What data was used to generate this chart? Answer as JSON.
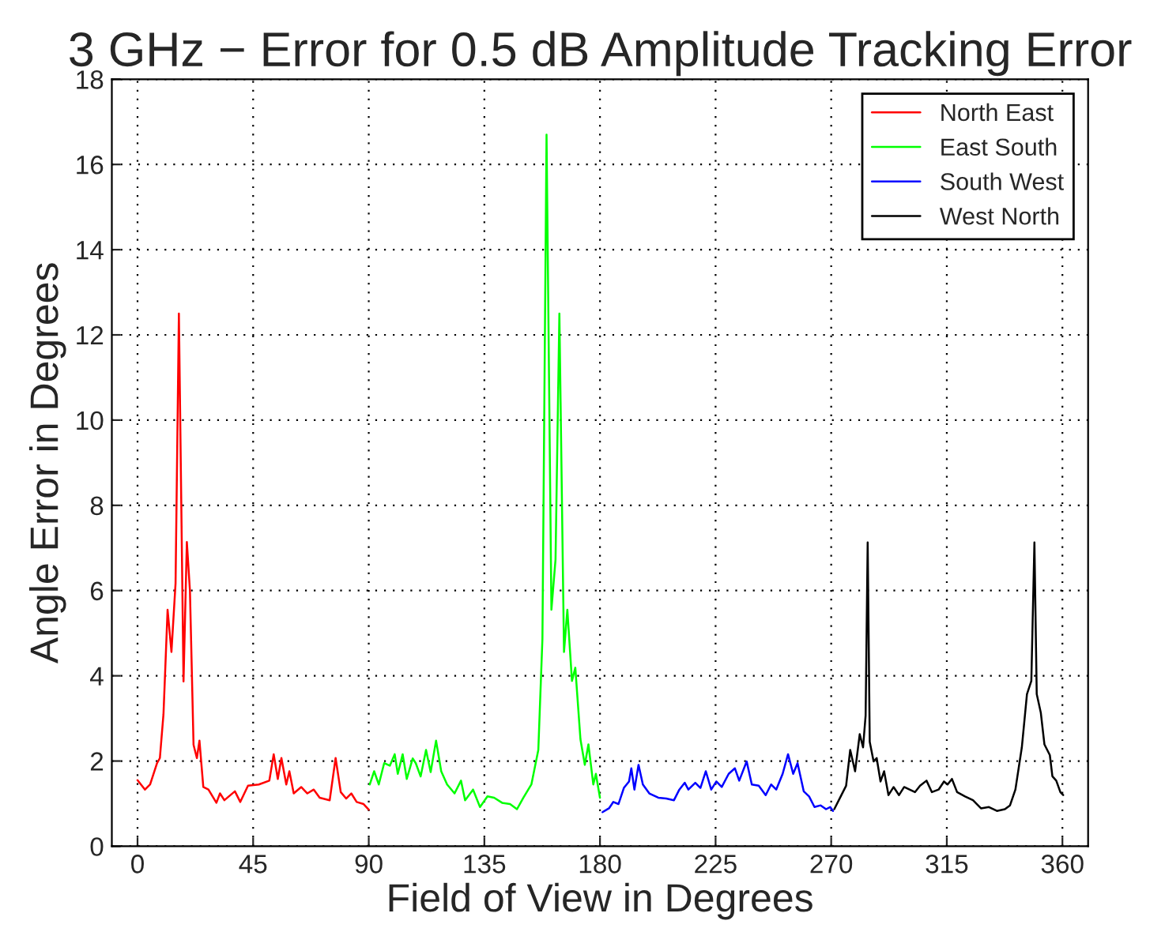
{
  "chart_data": {
    "type": "line",
    "title": "3 GHz − Error for 0.5 dB Amplitude Tracking Error",
    "xlabel": "Field of View in Degrees",
    "ylabel": "Angle Error in Degrees",
    "xlim": [
      -10,
      370
    ],
    "ylim": [
      0,
      18
    ],
    "xticks": [
      0,
      45,
      90,
      135,
      180,
      225,
      270,
      315,
      360
    ],
    "yticks": [
      0,
      2,
      4,
      6,
      8,
      10,
      12,
      14,
      16,
      18
    ],
    "grid": true,
    "legend": "top right",
    "line_style": "solid",
    "series": [
      {
        "name": "North East",
        "color": "#ff0000",
        "x": [
          0,
          2.9,
          4.9,
          7.6,
          8.7,
          10.1,
          11.7,
          13.2,
          14.8,
          16.1,
          17.9,
          19.2,
          20.4,
          21.8,
          23.1,
          24.1,
          25.6,
          27.6,
          30.7,
          32.1,
          33.8,
          37.9,
          40,
          43,
          47.2,
          51.3,
          53,
          54.6,
          56,
          57.9,
          59.1,
          60.8,
          63.7,
          66.1,
          68.6,
          70.9,
          74.8,
          77.1,
          79.1,
          81.2,
          83.2,
          85.3,
          88,
          90
        ],
        "values": [
          1.55,
          1.33,
          1.45,
          1.95,
          2.07,
          3.1,
          5.55,
          4.56,
          6.17,
          12.5,
          3.87,
          7.14,
          6.0,
          2.38,
          2.07,
          2.48,
          1.39,
          1.33,
          1.02,
          1.24,
          1.08,
          1.29,
          1.04,
          1.42,
          1.45,
          1.54,
          2.16,
          1.58,
          2.07,
          1.45,
          1.76,
          1.24,
          1.39,
          1.24,
          1.33,
          1.14,
          1.08,
          2.07,
          1.27,
          1.12,
          1.24,
          1.04,
          0.99,
          0.86
        ]
      },
      {
        "name": "East South",
        "color": "#00ff00",
        "x": [
          90.4,
          92.1,
          93.9,
          96,
          98.2,
          100.1,
          101.3,
          103.2,
          104.8,
          107.1,
          108.3,
          110.2,
          112.3,
          114.1,
          116.2,
          118.2,
          120.5,
          123.4,
          125.9,
          127.5,
          130.6,
          133.3,
          136.2,
          138.8,
          141.9,
          145,
          147.7,
          150.2,
          153.3,
          156,
          157.6,
          159.2,
          161.1,
          162.7,
          164.2,
          166,
          167.3,
          169.1,
          170.4,
          172.4,
          174.1,
          175.5,
          177.4,
          178.4,
          180
        ],
        "values": [
          1.45,
          1.76,
          1.45,
          1.95,
          1.89,
          2.16,
          1.7,
          2.16,
          1.58,
          2.06,
          1.95,
          1.64,
          2.26,
          1.74,
          2.48,
          1.76,
          1.45,
          1.24,
          1.54,
          1.08,
          1.33,
          0.92,
          1.17,
          1.14,
          1.02,
          0.99,
          0.87,
          1.14,
          1.45,
          2.26,
          4.87,
          16.7,
          5.55,
          6.73,
          12.5,
          4.56,
          5.55,
          3.88,
          4.19,
          2.51,
          1.91,
          2.39,
          1.45,
          1.7,
          1.14
        ]
      },
      {
        "name": "South West",
        "color": "#0000ff",
        "x": [
          181,
          183.5,
          185.2,
          187.2,
          189.3,
          191.3,
          192.2,
          193.4,
          195,
          196.7,
          199.2,
          202.7,
          205.8,
          208.8,
          210.9,
          213,
          214.4,
          217.1,
          219.1,
          221.2,
          223.3,
          225.3,
          227.4,
          230.1,
          232.5,
          234.2,
          237.1,
          239.1,
          241.8,
          244.5,
          246.6,
          248.6,
          251.1,
          253.2,
          255.2,
          256.9,
          259.3,
          261.4,
          263.5,
          265.9,
          268,
          269.6,
          270.7
        ],
        "values": [
          0.8,
          0.89,
          1.04,
          0.99,
          1.37,
          1.52,
          1.83,
          1.33,
          1.91,
          1.45,
          1.24,
          1.14,
          1.12,
          1.08,
          1.33,
          1.49,
          1.33,
          1.49,
          1.37,
          1.76,
          1.33,
          1.52,
          1.39,
          1.7,
          1.83,
          1.54,
          1.99,
          1.45,
          1.42,
          1.2,
          1.45,
          1.33,
          1.7,
          2.16,
          1.7,
          1.95,
          1.29,
          1.17,
          0.92,
          0.96,
          0.87,
          0.92,
          0.83
        ]
      },
      {
        "name": "West North",
        "color": "#000000",
        "x": [
          271.2,
          273.7,
          275.8,
          277.4,
          279.3,
          281.1,
          282.4,
          283.4,
          284.2,
          285,
          286.5,
          287.7,
          289.2,
          290.6,
          292.3,
          294.3,
          296.4,
          298.4,
          300.5,
          302.6,
          304.6,
          307.1,
          309.2,
          311.8,
          313.9,
          315.3,
          317,
          319,
          322.1,
          325.2,
          328.3,
          331.4,
          334.5,
          337.6,
          339.6,
          341.7,
          344.2,
          346.2,
          347.9,
          349.1,
          350,
          351.6,
          353,
          355.1,
          356.1,
          357.6,
          359.2,
          360.3
        ],
        "values": [
          0.87,
          1.17,
          1.42,
          2.26,
          1.76,
          2.63,
          2.32,
          3.07,
          7.13,
          2.45,
          1.99,
          2.07,
          1.52,
          1.76,
          1.2,
          1.39,
          1.2,
          1.39,
          1.33,
          1.27,
          1.42,
          1.54,
          1.27,
          1.33,
          1.52,
          1.45,
          1.58,
          1.27,
          1.17,
          1.08,
          0.89,
          0.92,
          0.83,
          0.87,
          0.96,
          1.33,
          2.32,
          3.57,
          3.88,
          7.13,
          3.57,
          3.13,
          2.39,
          2.14,
          1.64,
          1.54,
          1.27,
          1.2
        ]
      }
    ]
  }
}
